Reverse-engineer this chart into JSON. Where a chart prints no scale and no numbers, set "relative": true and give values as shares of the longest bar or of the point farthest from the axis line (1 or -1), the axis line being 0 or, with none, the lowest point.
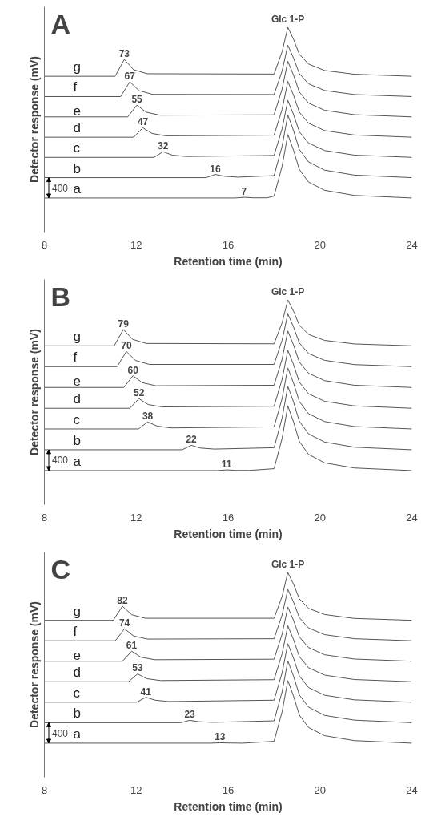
{
  "chart_data": [
    {
      "type": "line",
      "title": "A",
      "xlabel": "Retention time (min)",
      "ylabel": "Detector response (mV)",
      "relative": true,
      "xlim": [
        8,
        24
      ],
      "xticks": [
        8,
        12,
        16,
        20,
        24
      ],
      "grid": false,
      "series": [
        {
          "name": "a",
          "color": "#555555",
          "x": [
            8,
            16.29,
            16.69,
            17.09,
            17.69,
            18.0,
            18.35,
            18.6,
            18.85,
            19.1,
            19.5,
            20.2,
            21.5,
            24
          ],
          "values": [
            0,
            0,
            0.004,
            0.001,
            0.001,
            0.011,
            0.186,
            0.372,
            0.279,
            0.167,
            0.093,
            0.045,
            0.015,
            0
          ]
        },
        {
          "name": "b",
          "color": "#555555",
          "x": [
            8,
            15.04,
            15.44,
            15.84,
            16.44,
            18.0,
            18.35,
            18.6,
            18.85,
            19.1,
            19.5,
            20.2,
            21.5,
            24
          ],
          "values": [
            0.119,
            0.119,
            0.138,
            0.127,
            0.122,
            0.131,
            0.303,
            0.486,
            0.394,
            0.284,
            0.211,
            0.163,
            0.134,
            0.119
          ]
        },
        {
          "name": "c",
          "color": "#555555",
          "x": [
            8,
            12.77,
            13.17,
            13.57,
            14.17,
            18.0,
            18.35,
            18.6,
            18.85,
            19.1,
            19.5,
            20.2,
            21.5,
            24
          ],
          "values": [
            0.238,
            0.238,
            0.271,
            0.251,
            0.243,
            0.249,
            0.405,
            0.572,
            0.488,
            0.388,
            0.322,
            0.278,
            0.251,
            0.238
          ]
        },
        {
          "name": "d",
          "color": "#555555",
          "x": [
            8,
            11.89,
            12.29,
            12.69,
            13.29,
            18.0,
            18.35,
            18.6,
            18.85,
            19.1,
            19.5,
            20.2,
            21.5,
            24
          ],
          "values": [
            0.356,
            0.356,
            0.411,
            0.378,
            0.364,
            0.368,
            0.519,
            0.683,
            0.601,
            0.503,
            0.438,
            0.395,
            0.369,
            0.356
          ]
        },
        {
          "name": "e",
          "color": "#555555",
          "x": [
            8,
            11.63,
            12.03,
            12.43,
            13.03,
            18.0,
            18.35,
            18.6,
            18.85,
            19.1,
            19.5,
            20.2,
            21.5,
            24
          ],
          "values": [
            0.475,
            0.475,
            0.544,
            0.503,
            0.485,
            0.487,
            0.638,
            0.801,
            0.719,
            0.621,
            0.556,
            0.514,
            0.488,
            0.475
          ]
        },
        {
          "name": "f",
          "color": "#555555",
          "x": [
            8,
            11.32,
            11.72,
            12.12,
            12.72,
            18.0,
            18.35,
            18.6,
            18.85,
            19.1,
            19.5,
            20.2,
            21.5,
            24
          ],
          "values": [
            0.594,
            0.594,
            0.681,
            0.629,
            0.607,
            0.606,
            0.744,
            0.895,
            0.819,
            0.729,
            0.669,
            0.63,
            0.606,
            0.594
          ]
        },
        {
          "name": "g",
          "color": "#555555",
          "x": [
            8,
            11.08,
            11.48,
            11.88,
            12.48,
            18.0,
            18.35,
            18.6,
            18.85,
            19.1,
            19.5,
            20.2,
            21.5,
            24
          ],
          "values": [
            0.713,
            0.713,
            0.812,
            0.752,
            0.728,
            0.726,
            0.857,
            1.0,
            0.929,
            0.842,
            0.785,
            0.747,
            0.725,
            0.713
          ]
        }
      ],
      "annotations": [
        {
          "text": "7",
          "x": 16.69,
          "y": 0.004
        },
        {
          "text": "16",
          "x": 15.44,
          "y": 0.138
        },
        {
          "text": "32",
          "x": 13.17,
          "y": 0.271
        },
        {
          "text": "47",
          "x": 12.29,
          "y": 0.411
        },
        {
          "text": "55",
          "x": 12.03,
          "y": 0.544
        },
        {
          "text": "67",
          "x": 11.72,
          "y": 0.681
        },
        {
          "text": "73",
          "x": 11.48,
          "y": 0.812
        },
        {
          "text": "Glc 1-P",
          "x": 18.6,
          "y": 1.0
        },
        "400"
      ]
    },
    {
      "type": "line",
      "title": "B",
      "xlabel": "Retention time (min)",
      "ylabel": "Detector response (mV)",
      "relative": true,
      "xlim": [
        8,
        24
      ],
      "xticks": [
        8,
        12,
        16,
        20,
        24
      ],
      "grid": false,
      "series": [
        {
          "name": "a",
          "color": "#555555",
          "x": [
            8,
            15.53,
            15.93,
            16.33,
            16.93,
            18.0,
            18.35,
            18.6,
            18.85,
            19.1,
            19.5,
            20.2,
            21.5,
            24
          ],
          "values": [
            0,
            0,
            0.004,
            0.001,
            0.001,
            0.011,
            0.189,
            0.379,
            0.284,
            0.171,
            0.095,
            0.045,
            0.015,
            0
          ]
        },
        {
          "name": "b",
          "color": "#555555",
          "x": [
            8,
            14.0,
            14.4,
            14.8,
            15.4,
            18.0,
            18.35,
            18.6,
            18.85,
            19.1,
            19.5,
            20.2,
            21.5,
            24
          ],
          "values": [
            0.122,
            0.122,
            0.148,
            0.132,
            0.126,
            0.134,
            0.308,
            0.493,
            0.401,
            0.289,
            0.215,
            0.167,
            0.137,
            0.122
          ]
        },
        {
          "name": "c",
          "color": "#555555",
          "x": [
            8,
            12.1,
            12.5,
            12.9,
            13.5,
            18.0,
            18.35,
            18.6,
            18.85,
            19.1,
            19.5,
            20.2,
            21.5,
            24
          ],
          "values": [
            0.244,
            0.244,
            0.285,
            0.261,
            0.25,
            0.256,
            0.422,
            0.601,
            0.512,
            0.405,
            0.333,
            0.287,
            0.258,
            0.244
          ]
        },
        {
          "name": "d",
          "color": "#555555",
          "x": [
            8,
            11.72,
            12.12,
            12.52,
            13.12,
            18.0,
            18.35,
            18.6,
            18.85,
            19.1,
            19.5,
            20.2,
            21.5,
            24
          ],
          "values": [
            0.365,
            0.365,
            0.421,
            0.387,
            0.373,
            0.377,
            0.535,
            0.705,
            0.62,
            0.518,
            0.45,
            0.406,
            0.379,
            0.365
          ]
        },
        {
          "name": "e",
          "color": "#555555",
          "x": [
            8,
            11.46,
            11.86,
            12.26,
            12.86,
            18.0,
            18.35,
            18.6,
            18.85,
            19.1,
            19.5,
            20.2,
            21.5,
            24
          ],
          "values": [
            0.487,
            0.487,
            0.556,
            0.515,
            0.497,
            0.5,
            0.653,
            0.818,
            0.735,
            0.636,
            0.57,
            0.527,
            0.5,
            0.487
          ]
        },
        {
          "name": "f",
          "color": "#555555",
          "x": [
            8,
            11.17,
            11.57,
            11.97,
            12.57,
            18.0,
            18.35,
            18.6,
            18.85,
            19.1,
            19.5,
            20.2,
            21.5,
            24
          ],
          "values": [
            0.609,
            0.609,
            0.698,
            0.645,
            0.622,
            0.622,
            0.764,
            0.918,
            0.841,
            0.748,
            0.686,
            0.646,
            0.621,
            0.609
          ]
        },
        {
          "name": "g",
          "color": "#555555",
          "x": [
            8,
            11.04,
            11.44,
            11.84,
            12.44,
            18.0,
            18.35,
            18.6,
            18.85,
            19.1,
            19.5,
            20.2,
            21.5,
            24
          ],
          "values": [
            0.731,
            0.731,
            0.827,
            0.769,
            0.745,
            0.743,
            0.866,
            1.0,
            0.933,
            0.852,
            0.798,
            0.763,
            0.742,
            0.731
          ]
        }
      ],
      "annotations": [
        {
          "text": "11",
          "x": 15.93,
          "y": 0.004
        },
        {
          "text": "22",
          "x": 14.4,
          "y": 0.148
        },
        {
          "text": "38",
          "x": 12.5,
          "y": 0.285
        },
        {
          "text": "52",
          "x": 12.12,
          "y": 0.421
        },
        {
          "text": "60",
          "x": 11.86,
          "y": 0.556
        },
        {
          "text": "70",
          "x": 11.57,
          "y": 0.698
        },
        {
          "text": "79",
          "x": 11.44,
          "y": 0.827
        },
        {
          "text": "Glc 1-P",
          "x": 18.6,
          "y": 1.0
        },
        "400"
      ]
    },
    {
      "type": "line",
      "title": "C",
      "xlabel": "Retention time (min)",
      "ylabel": "Detector response (mV)",
      "relative": true,
      "xlim": [
        8,
        24
      ],
      "xticks": [
        8,
        12,
        16,
        20,
        24
      ],
      "grid": false,
      "series": [
        {
          "name": "a",
          "color": "#555555",
          "x": [
            8,
            15.24,
            15.64,
            16.04,
            16.64,
            18.0,
            18.35,
            18.6,
            18.85,
            19.1,
            19.5,
            20.2,
            21.5,
            24
          ],
          "values": [
            0,
            0,
            0.002,
            0.001,
            0,
            0.011,
            0.184,
            0.367,
            0.275,
            0.165,
            0.092,
            0.044,
            0.015,
            0
          ]
        },
        {
          "name": "b",
          "color": "#555555",
          "x": [
            8,
            13.93,
            14.33,
            14.73,
            15.33,
            18.0,
            18.35,
            18.6,
            18.85,
            19.1,
            19.5,
            20.2,
            21.5,
            24
          ],
          "values": [
            0.12,
            0.12,
            0.134,
            0.126,
            0.122,
            0.131,
            0.301,
            0.482,
            0.392,
            0.283,
            0.211,
            0.163,
            0.135,
            0.12
          ]
        },
        {
          "name": "c",
          "color": "#555555",
          "x": [
            8,
            12.02,
            12.42,
            12.82,
            13.42,
            18.0,
            18.35,
            18.6,
            18.85,
            19.1,
            19.5,
            20.2,
            21.5,
            24
          ],
          "values": [
            0.24,
            0.24,
            0.269,
            0.252,
            0.244,
            0.252,
            0.412,
            0.583,
            0.497,
            0.394,
            0.326,
            0.281,
            0.254,
            0.24
          ]
        },
        {
          "name": "d",
          "color": "#555555",
          "x": [
            8,
            11.66,
            12.06,
            12.46,
            13.06,
            18.0,
            18.35,
            18.6,
            18.85,
            19.1,
            19.5,
            20.2,
            21.5,
            24
          ],
          "values": [
            0.36,
            0.36,
            0.406,
            0.378,
            0.367,
            0.372,
            0.524,
            0.688,
            0.606,
            0.507,
            0.442,
            0.399,
            0.373,
            0.36
          ]
        },
        {
          "name": "e",
          "color": "#555555",
          "x": [
            8,
            11.4,
            11.8,
            12.2,
            12.8,
            18.0,
            18.35,
            18.6,
            18.85,
            19.1,
            19.5,
            20.2,
            21.5,
            24
          ],
          "values": [
            0.48,
            0.48,
            0.539,
            0.504,
            0.489,
            0.492,
            0.639,
            0.798,
            0.719,
            0.623,
            0.56,
            0.518,
            0.493,
            0.48
          ]
        },
        {
          "name": "f",
          "color": "#555555",
          "x": [
            8,
            11.09,
            11.49,
            11.89,
            12.49,
            18.0,
            18.35,
            18.6,
            18.85,
            19.1,
            19.5,
            20.2,
            21.5,
            24
          ],
          "values": [
            0.6,
            0.6,
            0.67,
            0.628,
            0.61,
            0.612,
            0.751,
            0.901,
            0.826,
            0.736,
            0.675,
            0.636,
            0.612,
            0.6
          ]
        },
        {
          "name": "g",
          "color": "#555555",
          "x": [
            8,
            11.0,
            11.4,
            11.8,
            12.4,
            18.0,
            18.35,
            18.6,
            18.85,
            19.1,
            19.5,
            20.2,
            21.5,
            24
          ],
          "values": [
            0.72,
            0.72,
            0.803,
            0.753,
            0.732,
            0.732,
            0.86,
            1.0,
            0.931,
            0.846,
            0.79,
            0.754,
            0.731,
            0.72
          ]
        }
      ],
      "annotations": [
        {
          "text": "13",
          "x": 15.64,
          "y": 0.002
        },
        {
          "text": "23",
          "x": 14.33,
          "y": 0.134
        },
        {
          "text": "41",
          "x": 12.42,
          "y": 0.269
        },
        {
          "text": "53",
          "x": 12.06,
          "y": 0.406
        },
        {
          "text": "61",
          "x": 11.8,
          "y": 0.539
        },
        {
          "text": "74",
          "x": 11.49,
          "y": 0.67
        },
        {
          "text": "82",
          "x": 11.4,
          "y": 0.803
        },
        {
          "text": "Glc 1-P",
          "x": 18.6,
          "y": 1.0
        },
        "400"
      ]
    }
  ]
}
